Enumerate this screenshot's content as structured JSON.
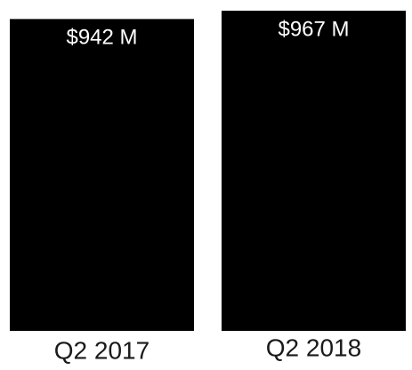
{
  "chart_data": {
    "type": "bar",
    "categories": [
      "Q2 2017",
      "Q2 2018"
    ],
    "values": [
      942,
      967
    ],
    "data_labels": [
      "$942 M",
      "$967 M"
    ],
    "bar_color": "#000000",
    "background_color": "#ffffff",
    "grid": false
  }
}
